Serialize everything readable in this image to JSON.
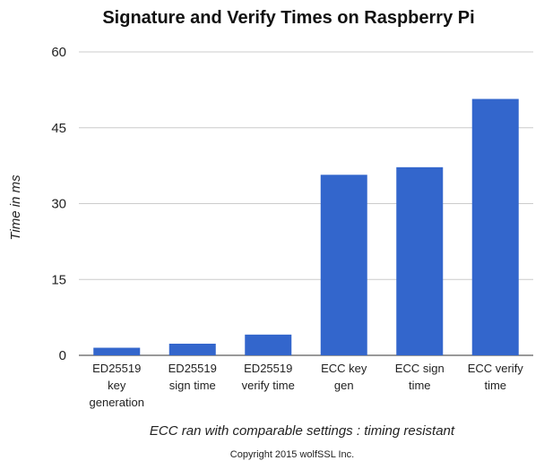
{
  "chart_data": {
    "type": "bar",
    "title": "Signature and Verify Times on Raspberry Pi",
    "ylabel": "Time in ms",
    "xlabel": "ECC ran with comparable settings : timing resistant",
    "footer": "Copyright 2015 wolfSSL Inc.",
    "ylim": [
      0,
      60
    ],
    "yticks": [
      0,
      15,
      30,
      45,
      60
    ],
    "grid": true,
    "bar_color": "#3366cc",
    "categories": [
      [
        "ED25519",
        "key",
        "generation"
      ],
      [
        "ED25519",
        "sign time"
      ],
      [
        "ED25519",
        "verify time"
      ],
      [
        "ECC key",
        "gen"
      ],
      [
        "ECC sign",
        "time"
      ],
      [
        "ECC verify",
        "time"
      ]
    ],
    "values": [
      1.5,
      2.3,
      4.1,
      35.7,
      37.2,
      50.7
    ]
  }
}
